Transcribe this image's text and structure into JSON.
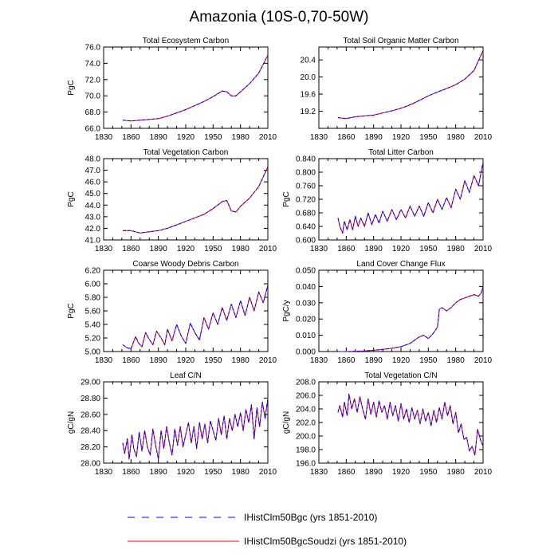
{
  "title": "Amazonia (10S-0,70-50W)",
  "colors": {
    "red": "#ff0000",
    "blue": "#0000ff",
    "axis": "#000000"
  },
  "legend": {
    "placement": "bottom",
    "items": [
      {
        "label": "IHistClm50Bgc (yrs 1851-2010)",
        "color": "#0000ff",
        "style": "dashed"
      },
      {
        "label": "IHistClm50BgcSoudzi (yrs 1851-2010)",
        "color": "#ff0000",
        "style": "solid"
      }
    ]
  },
  "chart_data": [
    {
      "type": "line",
      "title": "Total Ecosystem Carbon",
      "ylabel": "PgC",
      "xlabel": "",
      "xlim": [
        1830,
        2010
      ],
      "ylim": [
        66.0,
        76.0
      ],
      "xticks": [
        1830,
        1860,
        1890,
        1920,
        1950,
        1980,
        2010
      ],
      "yticks": [
        "66.0",
        "68.0",
        "70.0",
        "72.0",
        "74.0",
        "76.0"
      ],
      "series": [
        {
          "x": [
            1851,
            1860,
            1870,
            1880,
            1890,
            1900,
            1910,
            1920,
            1930,
            1940,
            1950,
            1960,
            1965,
            1970,
            1975,
            1980,
            1990,
            2000,
            2010
          ],
          "y": [
            67.0,
            66.9,
            67.0,
            67.1,
            67.2,
            67.5,
            67.9,
            68.3,
            68.8,
            69.3,
            69.9,
            70.6,
            70.5,
            70.0,
            70.0,
            70.5,
            71.5,
            72.8,
            75.0
          ]
        }
      ]
    },
    {
      "type": "line",
      "title": "Total Soil Organic Matter Carbon",
      "ylabel": "",
      "xlabel": "",
      "xlim": [
        1830,
        2010
      ],
      "ylim": [
        18.8,
        20.7
      ],
      "xticks": [
        1830,
        1860,
        1890,
        1920,
        1950,
        1980,
        2010
      ],
      "yticks": [
        "19.2",
        "19.6",
        "20.0",
        "20.4"
      ],
      "series": [
        {
          "x": [
            1851,
            1860,
            1870,
            1880,
            1890,
            1900,
            1910,
            1920,
            1930,
            1940,
            1950,
            1960,
            1970,
            1980,
            1990,
            2000,
            2010
          ],
          "y": [
            19.05,
            19.03,
            19.07,
            19.09,
            19.11,
            19.16,
            19.21,
            19.27,
            19.35,
            19.45,
            19.56,
            19.65,
            19.73,
            19.82,
            19.95,
            20.15,
            20.62
          ]
        }
      ]
    },
    {
      "type": "line",
      "title": "Total Vegetation Carbon",
      "ylabel": "PgC",
      "xlabel": "",
      "xlim": [
        1830,
        2010
      ],
      "ylim": [
        41.0,
        48.0
      ],
      "xticks": [
        1830,
        1860,
        1890,
        1920,
        1950,
        1980,
        2010
      ],
      "yticks": [
        "41.0",
        "42.0",
        "43.0",
        "44.0",
        "45.0",
        "46.0",
        "47.0",
        "48.0"
      ],
      "series": [
        {
          "x": [
            1851,
            1860,
            1870,
            1880,
            1890,
            1900,
            1910,
            1920,
            1930,
            1940,
            1950,
            1960,
            1965,
            1970,
            1975,
            1980,
            1990,
            2000,
            2010
          ],
          "y": [
            41.8,
            41.8,
            41.6,
            41.7,
            41.8,
            42.0,
            42.3,
            42.6,
            42.9,
            43.2,
            43.7,
            44.3,
            44.4,
            43.5,
            43.4,
            43.9,
            44.6,
            45.6,
            47.3
          ]
        }
      ]
    },
    {
      "type": "line",
      "title": "Total Litter Carbon",
      "ylabel": "PgC",
      "xlabel": "",
      "xlim": [
        1830,
        2010
      ],
      "ylim": [
        0.6,
        0.84
      ],
      "xticks": [
        1830,
        1860,
        1890,
        1920,
        1950,
        1980,
        2010
      ],
      "yticks": [
        "0.600",
        "0.640",
        "0.680",
        "0.720",
        "0.760",
        "0.800",
        "0.840"
      ],
      "series": [
        {
          "x": [
            1851,
            1853,
            1856,
            1858,
            1861,
            1864,
            1867,
            1870,
            1873,
            1876,
            1880,
            1884,
            1888,
            1892,
            1896,
            1900,
            1905,
            1910,
            1915,
            1920,
            1925,
            1930,
            1935,
            1940,
            1945,
            1950,
            1955,
            1960,
            1965,
            1970,
            1975,
            1980,
            1985,
            1990,
            1995,
            2000,
            2005,
            2010
          ],
          "y": [
            0.665,
            0.64,
            0.62,
            0.655,
            0.63,
            0.66,
            0.63,
            0.67,
            0.64,
            0.665,
            0.64,
            0.68,
            0.645,
            0.675,
            0.65,
            0.685,
            0.655,
            0.69,
            0.66,
            0.69,
            0.665,
            0.7,
            0.67,
            0.7,
            0.67,
            0.71,
            0.68,
            0.72,
            0.69,
            0.725,
            0.695,
            0.75,
            0.72,
            0.775,
            0.74,
            0.79,
            0.76,
            0.83
          ]
        }
      ]
    },
    {
      "type": "line",
      "title": "Coarse Woody Debris Carbon",
      "ylabel": "PgC",
      "xlabel": "",
      "xlim": [
        1830,
        2010
      ],
      "ylim": [
        5.0,
        6.2
      ],
      "xticks": [
        1830,
        1860,
        1890,
        1920,
        1950,
        1980,
        2010
      ],
      "yticks": [
        "5.00",
        "5.20",
        "5.40",
        "5.60",
        "5.80",
        "6.00",
        "6.20"
      ],
      "series": [
        {
          "x": [
            1851,
            1855,
            1860,
            1865,
            1868,
            1872,
            1876,
            1880,
            1884,
            1888,
            1893,
            1897,
            1900,
            1905,
            1910,
            1915,
            1920,
            1925,
            1930,
            1935,
            1940,
            1945,
            1950,
            1955,
            1960,
            1965,
            1970,
            1975,
            1980,
            1985,
            1990,
            1995,
            2000,
            2005,
            2010
          ],
          "y": [
            5.1,
            5.06,
            5.04,
            5.22,
            5.13,
            5.07,
            5.28,
            5.18,
            5.1,
            5.3,
            5.2,
            5.1,
            5.33,
            5.16,
            5.4,
            5.23,
            5.12,
            5.42,
            5.28,
            5.17,
            5.5,
            5.33,
            5.57,
            5.4,
            5.65,
            5.46,
            5.7,
            5.5,
            5.75,
            5.53,
            5.8,
            5.6,
            5.88,
            5.72,
            5.98
          ]
        }
      ]
    },
    {
      "type": "line",
      "title": "Land Cover Change Flux",
      "ylabel": "PgC/y",
      "xlabel": "",
      "xlim": [
        1830,
        2010
      ],
      "ylim": [
        0.0,
        0.05
      ],
      "xticks": [
        1830,
        1860,
        1890,
        1920,
        1950,
        1980,
        2010
      ],
      "yticks": [
        "0.000",
        "0.010",
        "0.020",
        "0.030",
        "0.040",
        "0.050"
      ],
      "series": [
        {
          "x": [
            1851,
            1860,
            1870,
            1880,
            1890,
            1900,
            1910,
            1920,
            1930,
            1935,
            1940,
            1945,
            1950,
            1955,
            1960,
            1961,
            1962,
            1965,
            1970,
            1975,
            1980,
            1985,
            1990,
            1995,
            2000,
            2005,
            2008,
            2010
          ],
          "y": [
            0.0,
            0.0,
            0.0002,
            0.0004,
            0.0008,
            0.0013,
            0.002,
            0.003,
            0.005,
            0.007,
            0.009,
            0.01,
            0.008,
            0.011,
            0.015,
            0.02,
            0.026,
            0.027,
            0.025,
            0.027,
            0.03,
            0.032,
            0.033,
            0.034,
            0.035,
            0.034,
            0.036,
            0.04
          ]
        }
      ]
    },
    {
      "type": "line",
      "title": "Leaf C/N",
      "ylabel": "gC/gN",
      "xlabel": "",
      "xlim": [
        1830,
        2010
      ],
      "ylim": [
        28.0,
        29.0
      ],
      "xticks": [
        1830,
        1860,
        1890,
        1920,
        1950,
        1980,
        2010
      ],
      "yticks": [
        "28.00",
        "28.20",
        "28.40",
        "28.60",
        "28.80",
        "29.00"
      ],
      "series": [
        {
          "x": [
            1851,
            1853,
            1856,
            1858,
            1861,
            1863,
            1866,
            1869,
            1872,
            1875,
            1878,
            1881,
            1884,
            1887,
            1890,
            1893,
            1896,
            1899,
            1902,
            1905,
            1908,
            1911,
            1914,
            1917,
            1920,
            1923,
            1926,
            1929,
            1932,
            1935,
            1938,
            1941,
            1944,
            1947,
            1950,
            1953,
            1956,
            1959,
            1962,
            1965,
            1968,
            1971,
            1974,
            1977,
            1980,
            1983,
            1986,
            1989,
            1992,
            1995,
            1998,
            2001,
            2004,
            2007,
            2010
          ],
          "y": [
            28.25,
            28.12,
            28.3,
            28.05,
            28.35,
            28.18,
            28.08,
            28.38,
            28.15,
            28.4,
            28.2,
            28.1,
            28.42,
            28.22,
            28.05,
            28.4,
            28.18,
            28.45,
            28.25,
            28.1,
            28.42,
            28.22,
            28.45,
            28.2,
            28.35,
            28.5,
            28.25,
            28.45,
            28.18,
            28.5,
            28.3,
            28.48,
            28.25,
            28.52,
            28.4,
            28.28,
            28.55,
            28.35,
            28.58,
            28.3,
            28.55,
            28.4,
            28.6,
            28.45,
            28.62,
            28.4,
            28.66,
            28.5,
            28.72,
            28.3,
            28.68,
            28.45,
            28.75,
            28.55,
            28.8
          ]
        }
      ]
    },
    {
      "type": "line",
      "title": "Total Vegetation C/N",
      "ylabel": "gC/gN",
      "xlabel": "",
      "xlim": [
        1830,
        2010
      ],
      "ylim": [
        196.0,
        208.0
      ],
      "xticks": [
        1830,
        1860,
        1890,
        1920,
        1950,
        1980,
        2010
      ],
      "yticks": [
        "196.0",
        "198.0",
        "200.0",
        "202.0",
        "204.0",
        "206.0",
        "208.0"
      ],
      "series": [
        {
          "x": [
            1851,
            1853,
            1856,
            1858,
            1861,
            1863,
            1866,
            1869,
            1872,
            1875,
            1878,
            1881,
            1884,
            1887,
            1890,
            1893,
            1896,
            1899,
            1902,
            1905,
            1908,
            1911,
            1914,
            1917,
            1920,
            1923,
            1926,
            1929,
            1932,
            1935,
            1938,
            1941,
            1944,
            1947,
            1950,
            1953,
            1956,
            1959,
            1962,
            1965,
            1968,
            1971,
            1974,
            1977,
            1980,
            1983,
            1986,
            1989,
            1992,
            1995,
            1998,
            2001,
            2004,
            2007,
            2010
          ],
          "y": [
            203.5,
            204.5,
            202.8,
            205.0,
            203.0,
            206.2,
            204.0,
            205.5,
            203.5,
            205.8,
            204.0,
            202.5,
            205.5,
            203.2,
            205.0,
            202.8,
            205.2,
            203.5,
            204.5,
            202.5,
            205.0,
            203.0,
            204.5,
            202.2,
            204.8,
            202.5,
            204.0,
            202.0,
            204.2,
            202.5,
            203.8,
            201.8,
            204.0,
            202.2,
            203.5,
            201.5,
            203.8,
            202.0,
            204.2,
            202.5,
            205.0,
            203.0,
            204.5,
            201.8,
            203.5,
            200.5,
            201.8,
            199.5,
            199.8,
            197.8,
            198.5,
            197.2,
            201.0,
            199.5,
            198.5
          ]
        }
      ]
    }
  ]
}
